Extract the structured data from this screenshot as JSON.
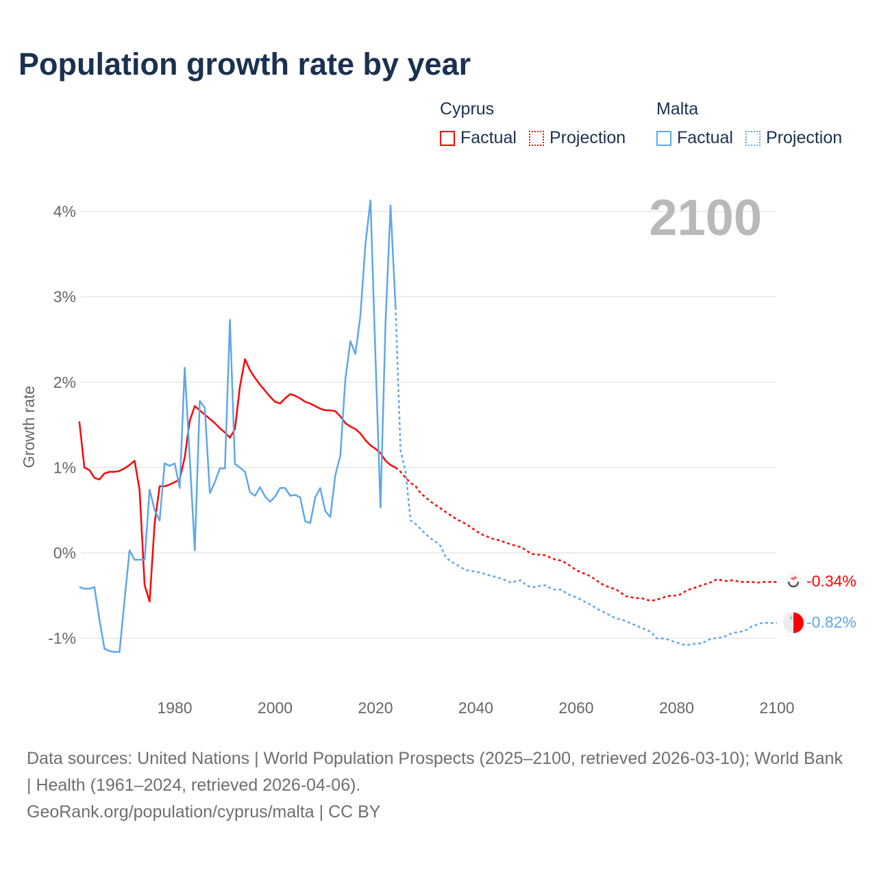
{
  "title": "Population growth rate by year",
  "legend": {
    "groups": [
      {
        "name": "Cyprus",
        "color": "#ff0000",
        "factual": "Factual",
        "projection": "Projection"
      },
      {
        "name": "Malta",
        "color": "#5ea6ec",
        "factual": "Factual",
        "projection": "Projection"
      }
    ]
  },
  "current_year": "2100",
  "footer": {
    "sources": "Data sources: United Nations | World Population Prospects (2025–2100, retrieved 2026-03-10); World Bank | Health (1961–2024, retrieved 2026-04-06).",
    "credit": "GeoRank.org/population/cyprus/malta | CC BY"
  },
  "chart_data": {
    "type": "line",
    "title": "Population growth rate by year",
    "xlabel": "",
    "ylabel": "Growth rate",
    "xlim": [
      1961,
      2100
    ],
    "ylim": [
      -1.5,
      4.2
    ],
    "x_ticks": [
      1980,
      2000,
      2020,
      2040,
      2060,
      2080,
      2100
    ],
    "y_ticks": [
      {
        "v": 4,
        "label": "4%"
      },
      {
        "v": 3,
        "label": "3%"
      },
      {
        "v": 2,
        "label": "2%"
      },
      {
        "v": 1,
        "label": "1%"
      },
      {
        "v": 0,
        "label": "0%"
      },
      {
        "v": -1,
        "label": "-1%"
      }
    ],
    "grid": true,
    "legend_position": "top-right",
    "series": [
      {
        "name": "Cyprus",
        "color": "#ff0000",
        "end_label": "-0.34%",
        "factual_start": 1961,
        "factual": [
          1.54,
          1.0,
          0.97,
          0.88,
          0.86,
          0.93,
          0.95,
          0.95,
          0.96,
          0.99,
          1.03,
          1.08,
          0.74,
          -0.38,
          -0.57,
          0.35,
          0.78,
          0.78,
          0.8,
          0.83,
          0.86,
          1.12,
          1.55,
          1.72,
          1.67,
          1.62,
          1.57,
          1.52,
          1.46,
          1.41,
          1.35,
          1.45,
          1.95,
          2.27,
          2.14,
          2.05,
          1.97,
          1.9,
          1.83,
          1.77,
          1.75,
          1.81,
          1.86,
          1.84,
          1.81,
          1.77,
          1.75,
          1.72,
          1.69,
          1.67,
          1.67,
          1.66,
          1.6,
          1.52,
          1.48,
          1.45,
          1.4,
          1.32,
          1.26,
          1.22,
          1.17,
          1.08,
          1.03,
          1.0
        ],
        "projection_start": 2025,
        "projection": [
          0.95,
          0.88,
          0.82,
          0.78,
          0.7,
          0.65,
          0.6,
          0.56,
          0.52,
          0.48,
          0.44,
          0.4,
          0.37,
          0.34,
          0.3,
          0.26,
          0.22,
          0.2,
          0.17,
          0.16,
          0.14,
          0.12,
          0.1,
          0.08,
          0.07,
          0.03,
          -0.01,
          -0.02,
          -0.02,
          -0.03,
          -0.06,
          -0.08,
          -0.09,
          -0.12,
          -0.16,
          -0.2,
          -0.23,
          -0.25,
          -0.28,
          -0.32,
          -0.36,
          -0.39,
          -0.41,
          -0.43,
          -0.47,
          -0.51,
          -0.52,
          -0.53,
          -0.53,
          -0.55,
          -0.56,
          -0.55,
          -0.53,
          -0.51,
          -0.5,
          -0.5,
          -0.48,
          -0.44,
          -0.42,
          -0.4,
          -0.38,
          -0.36,
          -0.34,
          -0.31,
          -0.32,
          -0.33,
          -0.32,
          -0.33,
          -0.34,
          -0.34,
          -0.34,
          -0.35,
          -0.34,
          -0.34,
          -0.34,
          -0.34
        ]
      },
      {
        "name": "Malta",
        "color": "#5ea6ec",
        "end_label": "-0.82%",
        "factual_start": 1961,
        "factual": [
          -0.4,
          -0.42,
          -0.42,
          -0.4,
          -0.78,
          -1.12,
          -1.15,
          -1.16,
          -1.16,
          -0.55,
          0.03,
          -0.08,
          -0.08,
          -0.08,
          0.74,
          0.5,
          0.38,
          1.05,
          1.02,
          1.05,
          0.76,
          2.17,
          1.1,
          0.03,
          1.78,
          1.7,
          0.7,
          0.83,
          0.99,
          0.99,
          2.73,
          1.04,
          1.0,
          0.95,
          0.71,
          0.67,
          0.77,
          0.66,
          0.6,
          0.66,
          0.76,
          0.76,
          0.67,
          0.68,
          0.65,
          0.37,
          0.35,
          0.65,
          0.76,
          0.49,
          0.42,
          0.91,
          1.14,
          2.04,
          2.48,
          2.33,
          2.78,
          3.62,
          4.13,
          2.3,
          0.53,
          2.7,
          4.07,
          2.88
        ],
        "projection_start": 2025,
        "projection": [
          1.2,
          0.95,
          0.38,
          0.34,
          0.28,
          0.22,
          0.17,
          0.13,
          0.08,
          -0.05,
          -0.1,
          -0.13,
          -0.17,
          -0.2,
          -0.21,
          -0.22,
          -0.23,
          -0.25,
          -0.27,
          -0.28,
          -0.3,
          -0.32,
          -0.35,
          -0.33,
          -0.32,
          -0.38,
          -0.4,
          -0.4,
          -0.38,
          -0.38,
          -0.42,
          -0.43,
          -0.43,
          -0.47,
          -0.5,
          -0.52,
          -0.55,
          -0.58,
          -0.61,
          -0.65,
          -0.68,
          -0.71,
          -0.74,
          -0.77,
          -0.78,
          -0.8,
          -0.83,
          -0.85,
          -0.88,
          -0.9,
          -0.93,
          -1.0,
          -1.0,
          -1.01,
          -1.03,
          -1.05,
          -1.07,
          -1.08,
          -1.07,
          -1.06,
          -1.06,
          -1.03,
          -1.0,
          -1.0,
          -0.99,
          -0.97,
          -0.94,
          -0.93,
          -0.92,
          -0.9,
          -0.86,
          -0.84,
          -0.82,
          -0.82,
          -0.82,
          -0.82
        ]
      }
    ]
  }
}
